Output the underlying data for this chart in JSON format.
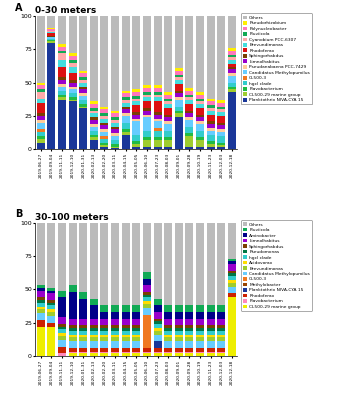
{
  "panel_A": {
    "title": "0-30 meters",
    "label": "A",
    "dates": [
      "2019-06-27",
      "2019-09-04",
      "2019-11-11",
      "2019-12-10",
      "2020-01-31",
      "2020-02-13",
      "2020-02-20",
      "2020-03-11",
      "2020-04-15",
      "2020-05-05",
      "2020-06-10",
      "2020-07-23",
      "2020-08-03",
      "2020-09-01",
      "2020-09-28",
      "2020-10-19",
      "2020-11-23",
      "2020-12-03",
      "2020-12-18"
    ],
    "legend_order_top_to_bottom": [
      "Others",
      "Pseudorhizobium",
      "Polynucleobacter",
      "Fluviicola",
      "Cyanobium PCC-6307",
      "Brevundimonas",
      "Rhodoferax",
      "Sphingorhabdus",
      "Limnolhabitus",
      "Pseudanabaena PCC-7429",
      "Candidatus Methylopumilus",
      "CL500-3",
      "hgcI clade",
      "Flavobacterium",
      "CL500-29 marine group",
      "Planktothrix NIVA-CYA 15"
    ],
    "categories_bottom_to_top": [
      "Planktothrix NIVA-CYA 15",
      "CL500-29 marine group",
      "Flavobacterium",
      "hgcI clade",
      "CL500-3",
      "Candidatus Methylopumilus",
      "Pseudanabaena PCC-7429",
      "Limnolhabitus",
      "Sphingorhabdus",
      "Rhodoferax",
      "Brevundimonas",
      "Cyanobium PCC-6307",
      "Fluviicola",
      "Polynucleobacter",
      "Pseudorhizobium",
      "Others"
    ],
    "colors_bottom_to_top": [
      "#1a3799",
      "#9fcc2e",
      "#22bb44",
      "#33cccc",
      "#f07820",
      "#66ccff",
      "#ffcc99",
      "#9900cc",
      "#7b3f00",
      "#dd1111",
      "#44dddd",
      "#ffaaaa",
      "#11aa55",
      "#ff77bb",
      "#ffee00",
      "#bbbbbb"
    ],
    "data_bottom_to_top": [
      [
        5,
        80,
        37,
        36,
        31,
        7,
        2,
        1,
        11,
        2,
        2,
        2,
        2,
        24,
        2,
        2,
        2,
        2,
        43
      ],
      [
        3,
        1,
        2,
        1,
        1,
        2,
        1,
        1,
        2,
        2,
        5,
        5,
        5,
        3,
        8,
        5,
        2,
        1,
        2
      ],
      [
        2,
        1,
        2,
        2,
        2,
        2,
        2,
        2,
        2,
        2,
        2,
        2,
        2,
        2,
        2,
        2,
        2,
        2,
        2
      ],
      [
        3,
        1,
        3,
        3,
        3,
        3,
        3,
        3,
        5,
        5,
        5,
        5,
        5,
        3,
        5,
        5,
        5,
        5,
        3
      ],
      [
        2,
        0,
        0,
        0,
        0,
        0,
        2,
        0,
        0,
        0,
        0,
        2,
        0,
        0,
        0,
        0,
        0,
        0,
        0
      ],
      [
        5,
        1,
        3,
        3,
        3,
        3,
        3,
        3,
        5,
        10,
        10,
        5,
        5,
        5,
        5,
        5,
        3,
        3,
        5
      ],
      [
        2,
        0,
        2,
        2,
        2,
        2,
        2,
        2,
        2,
        2,
        2,
        2,
        2,
        2,
        2,
        2,
        2,
        2,
        2
      ],
      [
        3,
        0,
        3,
        3,
        3,
        3,
        3,
        3,
        3,
        3,
        3,
        3,
        3,
        3,
        3,
        3,
        3,
        3,
        3
      ],
      [
        2,
        1,
        2,
        2,
        2,
        2,
        2,
        2,
        2,
        2,
        2,
        2,
        2,
        2,
        2,
        2,
        2,
        2,
        2
      ],
      [
        8,
        2,
        8,
        5,
        0,
        0,
        0,
        0,
        0,
        5,
        5,
        8,
        5,
        5,
        5,
        5,
        5,
        5,
        2
      ],
      [
        3,
        1,
        5,
        5,
        3,
        3,
        3,
        3,
        3,
        3,
        3,
        3,
        3,
        3,
        3,
        3,
        3,
        3,
        3
      ],
      [
        5,
        1,
        5,
        3,
        2,
        2,
        2,
        2,
        2,
        2,
        2,
        2,
        2,
        2,
        2,
        2,
        2,
        2,
        2
      ],
      [
        2,
        0,
        2,
        2,
        2,
        2,
        2,
        2,
        2,
        2,
        2,
        2,
        2,
        2,
        2,
        2,
        2,
        2,
        2
      ],
      [
        3,
        1,
        3,
        3,
        3,
        3,
        3,
        3,
        3,
        3,
        3,
        3,
        3,
        3,
        3,
        3,
        3,
        3,
        3
      ],
      [
        2,
        1,
        2,
        2,
        2,
        2,
        2,
        2,
        2,
        2,
        2,
        2,
        2,
        2,
        2,
        2,
        2,
        2,
        2
      ],
      [
        50,
        10,
        22,
        28,
        43,
        67,
        70,
        74,
        58,
        57,
        54,
        54,
        59,
        57,
        54,
        57,
        63,
        65,
        27
      ]
    ]
  },
  "panel_B": {
    "title": "30-100 meters",
    "label": "B",
    "dates": [
      "2019-06-27",
      "2019-09-04",
      "2019-11-11",
      "2019-12-10",
      "2020-01-31",
      "2020-02-13",
      "2020-02-20",
      "2020-03-11",
      "2020-04-15",
      "2020-05-05",
      "2020-06-10",
      "2020-07-23",
      "2020-08-03",
      "2020-09-01",
      "2020-09-28",
      "2020-10-19",
      "2020-11-23",
      "2020-12-03",
      "2020-12-18"
    ],
    "legend_order_top_to_bottom": [
      "Others",
      "Fluviicola",
      "Aminobacter",
      "Limnolhabitus",
      "Sphingorhabdus",
      "Pseudomonas",
      "hgcI clade",
      "Acidovorax",
      "Brevundimonas",
      "Candidatus Methylopumilus",
      "CL500-3",
      "Methylobacter",
      "Planktothrix NIVA-CYA 15",
      "Rhodoferax",
      "Flavobacterium",
      "CL500-29 marine group"
    ],
    "categories_bottom_to_top": [
      "CL500-29 marine group",
      "Flavobacterium",
      "Rhodoferax",
      "Planktothrix NIVA-CYA 15",
      "Methylobacter",
      "CL500-3",
      "Candidatus Methylopumilus",
      "Brevundimonas",
      "Acidovorax",
      "hgcI clade",
      "Pseudomonas",
      "Sphingorhabdus",
      "Limnolhabitus",
      "Aminobacter",
      "Fluviicola",
      "Others"
    ],
    "colors_bottom_to_top": [
      "#eeee00",
      "#ff88bb",
      "#cc2200",
      "#1a3799",
      "#994400",
      "#f07820",
      "#66ccff",
      "#9fcc2e",
      "#ffdd00",
      "#33cccc",
      "#007744",
      "#7b3f00",
      "#9900cc",
      "#000088",
      "#11aa55",
      "#bbbbbb"
    ],
    "data_bottom_to_top": [
      [
        22,
        22,
        0,
        2,
        2,
        2,
        2,
        2,
        2,
        2,
        2,
        2,
        2,
        2,
        2,
        2,
        2,
        2,
        44
      ],
      [
        0,
        0,
        2,
        1,
        1,
        1,
        1,
        1,
        1,
        1,
        1,
        1,
        1,
        1,
        1,
        1,
        1,
        1,
        0
      ],
      [
        5,
        3,
        5,
        3,
        3,
        3,
        3,
        3,
        3,
        3,
        3,
        3,
        3,
        3,
        3,
        3,
        3,
        3,
        3
      ],
      [
        0,
        0,
        0,
        0,
        0,
        0,
        0,
        0,
        0,
        0,
        0,
        5,
        0,
        0,
        0,
        0,
        0,
        0,
        0
      ],
      [
        0,
        0,
        0,
        0,
        0,
        0,
        0,
        0,
        0,
        0,
        0,
        0,
        0,
        0,
        0,
        0,
        0,
        0,
        0
      ],
      [
        0,
        0,
        0,
        0,
        0,
        0,
        0,
        0,
        0,
        0,
        25,
        0,
        0,
        0,
        0,
        0,
        0,
        0,
        0
      ],
      [
        5,
        5,
        5,
        5,
        5,
        5,
        5,
        5,
        5,
        5,
        5,
        5,
        5,
        5,
        5,
        5,
        5,
        5,
        5
      ],
      [
        3,
        3,
        3,
        3,
        3,
        3,
        3,
        3,
        3,
        3,
        3,
        3,
        3,
        3,
        3,
        3,
        3,
        3,
        3
      ],
      [
        2,
        2,
        2,
        2,
        2,
        2,
        2,
        2,
        2,
        2,
        2,
        2,
        2,
        2,
        2,
        2,
        2,
        2,
        2
      ],
      [
        3,
        3,
        3,
        3,
        3,
        3,
        3,
        3,
        3,
        3,
        3,
        3,
        3,
        3,
        3,
        3,
        3,
        3,
        3
      ],
      [
        2,
        2,
        2,
        2,
        2,
        2,
        2,
        2,
        2,
        2,
        2,
        2,
        2,
        2,
        2,
        2,
        2,
        2,
        2
      ],
      [
        2,
        2,
        2,
        2,
        2,
        2,
        2,
        2,
        2,
        2,
        2,
        2,
        2,
        2,
        2,
        2,
        2,
        2,
        2
      ],
      [
        5,
        5,
        5,
        5,
        5,
        5,
        5,
        5,
        5,
        5,
        5,
        5,
        5,
        5,
        5,
        5,
        5,
        5,
        5
      ],
      [
        2,
        2,
        15,
        20,
        15,
        10,
        5,
        5,
        5,
        5,
        5,
        5,
        5,
        5,
        5,
        5,
        5,
        5,
        2
      ],
      [
        2,
        2,
        5,
        5,
        5,
        5,
        5,
        5,
        5,
        5,
        5,
        5,
        5,
        5,
        5,
        5,
        5,
        5,
        2
      ],
      [
        47,
        49,
        51,
        47,
        52,
        57,
        62,
        63,
        63,
        63,
        38,
        63,
        63,
        63,
        63,
        63,
        63,
        63,
        29
      ]
    ]
  }
}
